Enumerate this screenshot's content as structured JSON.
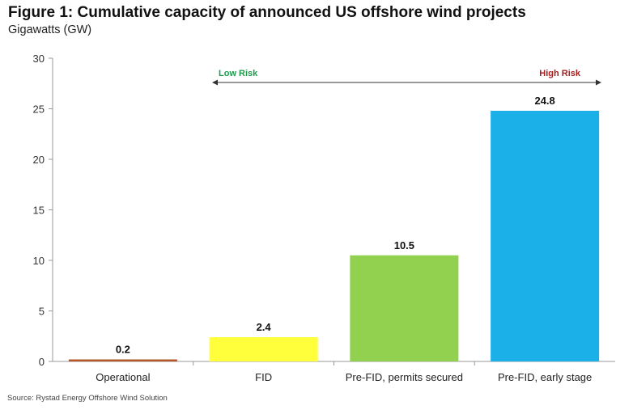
{
  "chart_data": {
    "type": "bar",
    "title": "Figure 1: Cumulative capacity of announced US offshore wind projects",
    "subtitle": "Gigawatts (GW)",
    "categories": [
      "Operational",
      "FID",
      "Pre-FID, permits secured",
      "Pre-FID, early stage"
    ],
    "values": [
      0.2,
      2.4,
      10.5,
      24.8
    ],
    "value_labels": [
      "0.2",
      "2.4",
      "10.5",
      "24.8"
    ],
    "colors": [
      "#b5562a",
      "#ffff3b",
      "#92d050",
      "#1cb0e8"
    ],
    "ylim": [
      0,
      30
    ],
    "yticks": [
      "0",
      "5",
      "10",
      "15",
      "20",
      "25",
      "30"
    ],
    "xlabel": "",
    "ylabel": "",
    "annotations": {
      "low_risk": "Low Risk",
      "high_risk": "High Risk",
      "low_color": "#1e9a4c",
      "high_color": "#a51d1d"
    },
    "source": "Source: Rystad Energy Offshore Wind Solution"
  }
}
